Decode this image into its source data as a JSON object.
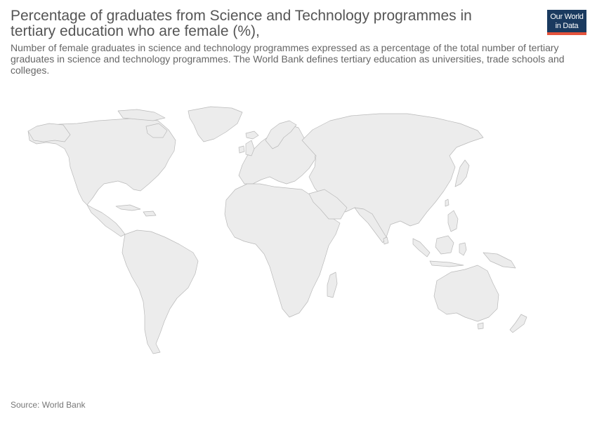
{
  "header": {
    "title_line1": "Percentage of graduates from Science and Technology programmes in",
    "title_line2": "tertiary education who are female (%),",
    "subtitle": "Number of female graduates in science and technology programmes expressed as a percentage of the total number of tertiary graduates in science and technology programmes. The World Bank defines tertiary education as universities, trade schools and colleges."
  },
  "logo": {
    "line1": "Our World",
    "line2": "in Data",
    "background_color": "#1a3a5f",
    "accent_color": "#e5533c"
  },
  "map": {
    "type": "world-choropleth",
    "fill_color": "#ececec",
    "border_color": "#b9b9b9",
    "data_shown": "none"
  },
  "footer": {
    "source": "Source: World Bank"
  }
}
